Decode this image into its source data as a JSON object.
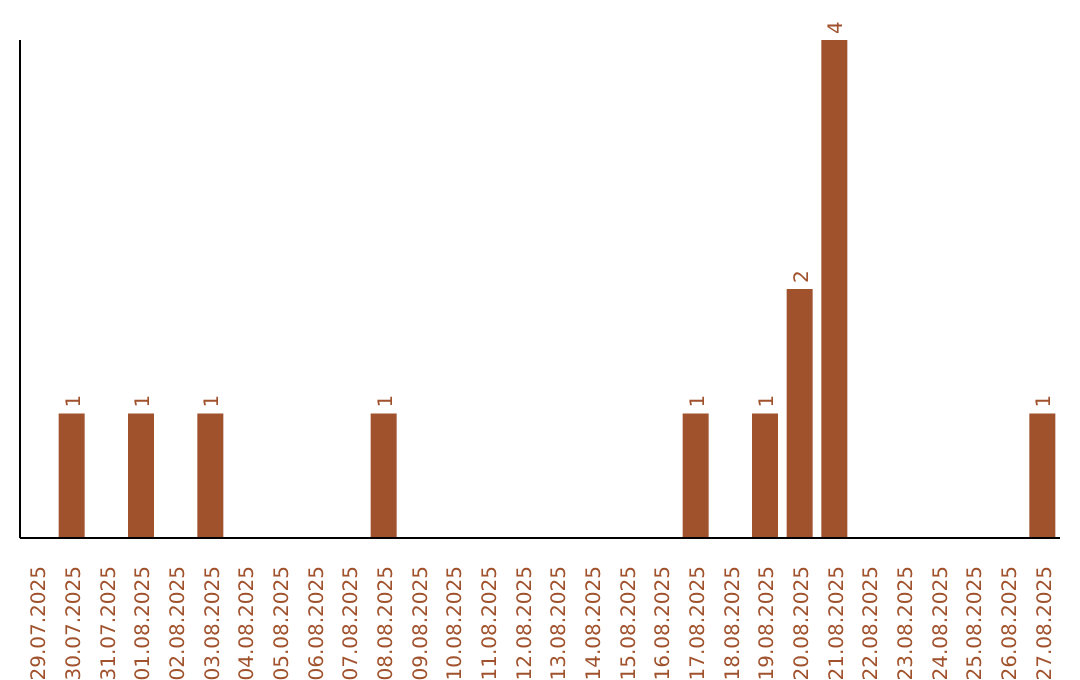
{
  "chart_data": {
    "type": "bar",
    "categories": [
      "29.07.2025",
      "30.07.2025",
      "31.07.2025",
      "01.08.2025",
      "02.08.2025",
      "03.08.2025",
      "04.08.2025",
      "05.08.2025",
      "06.08.2025",
      "07.08.2025",
      "08.08.2025",
      "09.08.2025",
      "10.08.2025",
      "11.08.2025",
      "12.08.2025",
      "13.08.2025",
      "14.08.2025",
      "15.08.2025",
      "16.08.2025",
      "17.08.2025",
      "18.08.2025",
      "19.08.2025",
      "20.08.2025",
      "21.08.2025",
      "22.08.2025",
      "23.08.2025",
      "24.08.2025",
      "25.08.2025",
      "26.08.2025",
      "27.08.2025"
    ],
    "values": [
      0,
      1,
      0,
      1,
      0,
      1,
      0,
      0,
      0,
      0,
      1,
      0,
      0,
      0,
      0,
      0,
      0,
      0,
      0,
      1,
      0,
      1,
      2,
      4,
      0,
      0,
      0,
      0,
      0,
      1
    ],
    "value_labels": [
      null,
      "1",
      null,
      "1",
      null,
      "1",
      null,
      null,
      null,
      null,
      "1",
      null,
      null,
      null,
      null,
      null,
      null,
      null,
      null,
      "1",
      null,
      "1",
      "2",
      "4",
      null,
      null,
      null,
      null,
      null,
      "1"
    ],
    "color": "#a0522d"
  }
}
